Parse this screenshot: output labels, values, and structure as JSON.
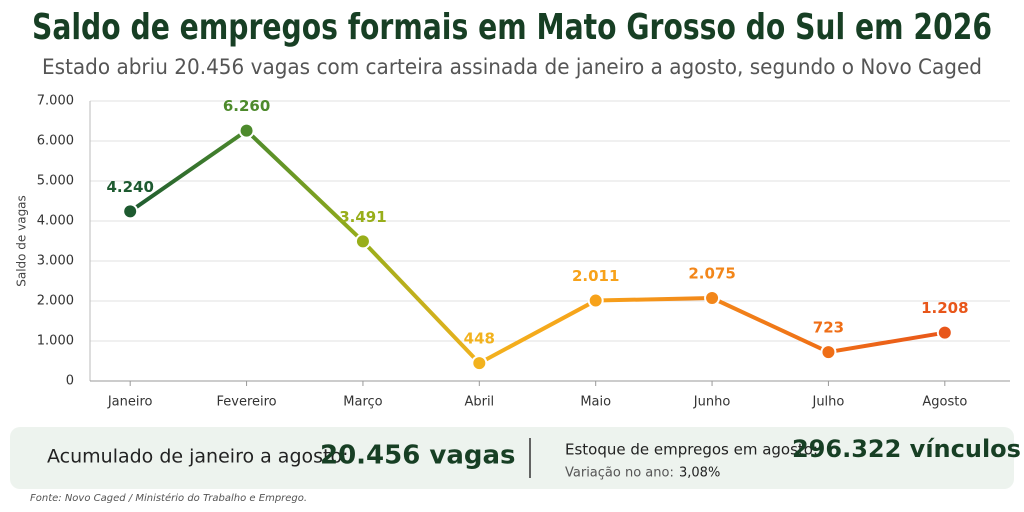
{
  "chart_data": {
    "type": "line",
    "title": "Saldo de empregos formais em Mato Grosso do Sul em 2026",
    "subtitle": "Estado abriu 20.456 vagas com carteira assinada de janeiro a agosto, segundo o Novo Caged",
    "y_label": "Saldo de vagas",
    "categories": [
      "Janeiro",
      "Fevereiro",
      "Março",
      "Abril",
      "Maio",
      "Junho",
      "Julho",
      "Agosto"
    ],
    "series": [
      {
        "name": "Saldo",
        "values": [
          4240,
          6260,
          3491,
          448,
          2011,
          2075,
          723,
          1208
        ],
        "value_labels": [
          "4.240",
          "6.260",
          "3.491",
          "448",
          "2.011",
          "2.075",
          "723",
          "1.208"
        ],
        "point_colors": [
          "#1d5a30",
          "#4d8a2c",
          "#98ae1a",
          "#f2b21e",
          "#f7a21a",
          "#f2861a",
          "#ef6e16",
          "#e8561a"
        ]
      }
    ],
    "ylim": [
      0,
      7000
    ],
    "yticks": [
      0,
      {
        "value": 1000,
        "label": "1.000"
      },
      {
        "value": 2000,
        "label": "2.000"
      },
      {
        "value": 3000,
        "label": "3.000"
      },
      {
        "value": 4000,
        "label": "4.000"
      },
      {
        "value": 5000,
        "label": "5.000"
      },
      {
        "value": 6000,
        "label": "6.000"
      },
      {
        "value": 7000,
        "label": "7.000"
      }
    ],
    "grid": true
  },
  "summary": {
    "left_label": "Acumulado de janeiro a agosto:",
    "left_value": "20.456 vagas",
    "right_label": "Estoque de empregos em agosto:",
    "right_value": "296.322 vínculos",
    "variation_label": "Variação no ano:",
    "variation_value": "3,08%"
  },
  "source": "Fonte: Novo Caged / Ministério do Trabalho e Emprego."
}
